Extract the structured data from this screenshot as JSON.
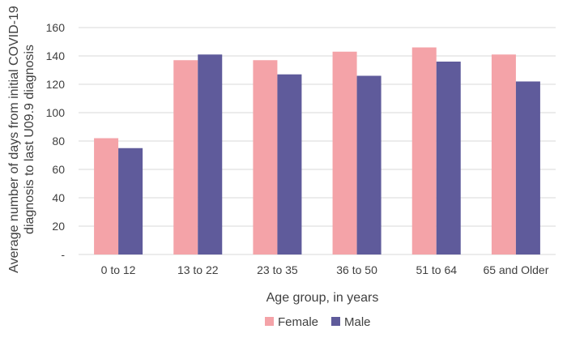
{
  "colors": {
    "female": "#f4a3a8",
    "male": "#5f5b9b",
    "grid": "#d9d9d9",
    "text": "#404040"
  },
  "chart_data": {
    "type": "bar",
    "title": "",
    "xlabel": "Age group, in years",
    "ylabel_lines": [
      "Average number of days from initial COVID-19",
      "diagnosis to last U09.9 diagnosis"
    ],
    "categories": [
      "0 to 12",
      "13 to 22",
      "23 to 35",
      "36 to 50",
      "51 to 64",
      "65 and Older"
    ],
    "series": [
      {
        "name": "Female",
        "values": [
          82,
          137,
          137,
          143,
          146,
          141
        ]
      },
      {
        "name": "Male",
        "values": [
          75,
          141,
          127,
          126,
          136,
          122
        ]
      }
    ],
    "ylim": [
      0,
      160
    ],
    "yticks": [
      "-",
      "20",
      "40",
      "60",
      "80",
      "100",
      "120",
      "140",
      "160"
    ],
    "grid": true,
    "legend_position": "bottom"
  }
}
